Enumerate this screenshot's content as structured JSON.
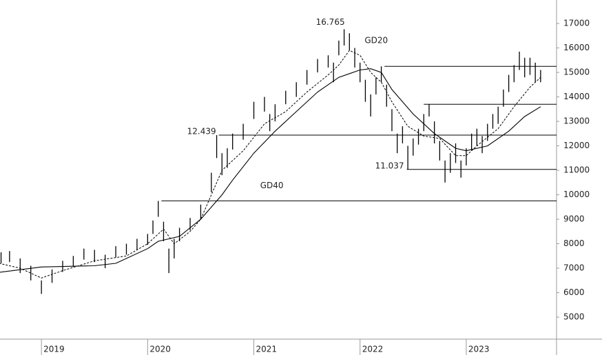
{
  "chart_data": {
    "type": "ohlc",
    "color": "#000000",
    "x": [
      2018.62,
      2018.7,
      2018.8,
      2018.9,
      2019.0,
      2019.1,
      2019.2,
      2019.3,
      2019.4,
      2019.5,
      2019.6,
      2019.7,
      2019.8,
      2019.9,
      2020.0,
      2020.05,
      2020.1,
      2020.15,
      2020.2,
      2020.25,
      2020.3,
      2020.4,
      2020.5,
      2020.6,
      2020.65,
      2020.7,
      2020.75,
      2020.8,
      2020.9,
      2021.0,
      2021.1,
      2021.15,
      2021.2,
      2021.3,
      2021.4,
      2021.5,
      2021.6,
      2021.7,
      2021.75,
      2021.8,
      2021.85,
      2021.9,
      2021.95,
      2022.0,
      2022.05,
      2022.1,
      2022.15,
      2022.2,
      2022.25,
      2022.3,
      2022.35,
      2022.4,
      2022.45,
      2022.5,
      2022.55,
      2022.6,
      2022.65,
      2022.7,
      2022.75,
      2022.8,
      2022.85,
      2022.9,
      2022.95,
      2023.0,
      2023.05,
      2023.1,
      2023.15,
      2023.2,
      2023.25,
      2023.3,
      2023.35,
      2023.4,
      2023.45,
      2023.5,
      2023.55,
      2023.6,
      2023.65,
      2023.7
    ],
    "high": [
      7650,
      7700,
      7400,
      7100,
      6500,
      6950,
      7300,
      7500,
      7800,
      7750,
      7550,
      7900,
      8000,
      8200,
      8400,
      8950,
      9750,
      8900,
      7800,
      8200,
      8650,
      9050,
      9600,
      10900,
      12439,
      11700,
      11900,
      12500,
      12900,
      13800,
      14000,
      13300,
      13700,
      14250,
      14600,
      15100,
      15550,
      15700,
      15400,
      16300,
      16765,
      16600,
      16000,
      15400,
      14700,
      14100,
      14800,
      15250,
      14500,
      13500,
      12500,
      12800,
      12000,
      12300,
      12700,
      13300,
      13700,
      13000,
      12200,
      11400,
      11700,
      12100,
      11400,
      11900,
      12500,
      12700,
      12400,
      12900,
      13300,
      13600,
      14300,
      14900,
      15300,
      15850,
      15600,
      15600,
      15400,
      15100
    ],
    "low": [
      7200,
      7250,
      6800,
      6500,
      5950,
      6400,
      6850,
      7050,
      7350,
      7250,
      7000,
      7450,
      7550,
      7750,
      7950,
      8400,
      9100,
      8100,
      6800,
      7400,
      8100,
      8550,
      9000,
      10100,
      11500,
      10800,
      11100,
      11850,
      12250,
      13100,
      13400,
      12600,
      13000,
      13700,
      14000,
      14500,
      15000,
      15200,
      14600,
      15700,
      16100,
      15900,
      15200,
      14600,
      13800,
      13200,
      14100,
      14600,
      13600,
      12600,
      11700,
      12100,
      11037,
      11600,
      12050,
      12600,
      13200,
      12100,
      11400,
      10500,
      10900,
      11300,
      10700,
      11200,
      11800,
      12000,
      11700,
      12200,
      12700,
      12900,
      13600,
      14200,
      14600,
      15100,
      14800,
      14900,
      14600,
      14600
    ],
    "lines": [
      {
        "name": "GD20",
        "dash": true,
        "x": [
          2018.6,
          2018.8,
          2019.0,
          2019.2,
          2019.5,
          2019.8,
          2020.0,
          2020.15,
          2020.25,
          2020.4,
          2020.5,
          2020.6,
          2020.7,
          2020.9,
          2021.1,
          2021.3,
          2021.5,
          2021.7,
          2021.8,
          2021.9,
          2022.0,
          2022.1,
          2022.2,
          2022.3,
          2022.45,
          2022.6,
          2022.75,
          2022.9,
          2023.0,
          2023.1,
          2023.3,
          2023.45,
          2023.6,
          2023.7
        ],
        "values": [
          7200,
          7000,
          6600,
          6900,
          7300,
          7500,
          8000,
          8600,
          8000,
          8500,
          9000,
          10000,
          11000,
          11800,
          12900,
          13400,
          14200,
          14900,
          15300,
          15900,
          15700,
          15000,
          14600,
          13800,
          12800,
          12400,
          12300,
          11600,
          11600,
          12000,
          12700,
          13600,
          14400,
          14800
        ]
      },
      {
        "name": "GD40",
        "dash": false,
        "x": [
          2018.6,
          2019.0,
          2019.5,
          2019.7,
          2020.0,
          2020.1,
          2020.2,
          2020.3,
          2020.5,
          2020.7,
          2020.8,
          2021.0,
          2021.2,
          2021.4,
          2021.6,
          2021.8,
          2022.0,
          2022.1,
          2022.2,
          2022.3,
          2022.5,
          2022.7,
          2022.9,
          2023.0,
          2023.2,
          2023.4,
          2023.55,
          2023.7
        ],
        "values": [
          6830,
          7050,
          7100,
          7200,
          7800,
          8100,
          8200,
          8300,
          9000,
          10000,
          10600,
          11700,
          12600,
          13400,
          14200,
          14800,
          15100,
          15150,
          15000,
          14300,
          13300,
          12500,
          11900,
          11800,
          12000,
          12600,
          13200,
          13600
        ]
      }
    ],
    "levels": [
      {
        "value": 15250,
        "x": 2022.23
      },
      {
        "value": 13700,
        "x": 2022.6
      },
      {
        "value": 12439,
        "label": "12.439",
        "x": 2020.67
      },
      {
        "value": 11037,
        "label": "11.037",
        "x": 2022.44
      },
      {
        "value": 9750,
        "x": 2020.13
      }
    ],
    "annotations": [
      {
        "value": 16765,
        "label": "16.765",
        "x": 2021.85
      }
    ],
    "xlim": [
      2018.61,
      2023.85
    ],
    "xticks": [
      2019,
      2020,
      2021,
      2022,
      2023
    ],
    "ylim": [
      4100,
      17960
    ],
    "yticks": [
      5000,
      6000,
      7000,
      8000,
      9000,
      10000,
      11000,
      12000,
      13000,
      14000,
      15000,
      16000,
      17000
    ]
  }
}
